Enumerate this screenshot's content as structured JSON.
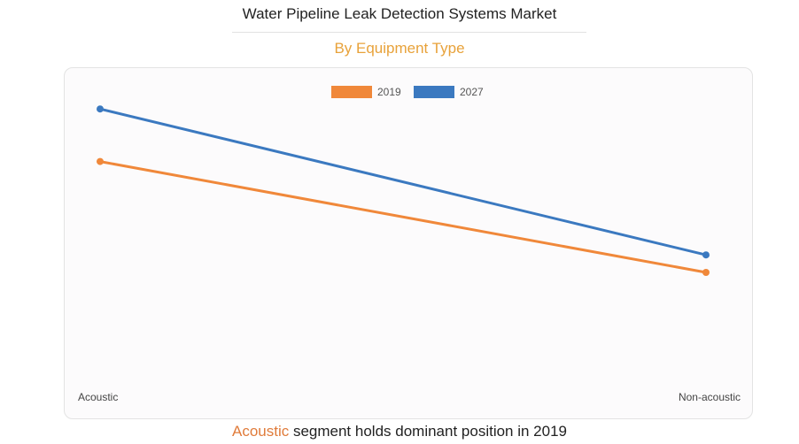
{
  "header": {
    "title": "Water Pipeline Leak Detection Systems Market",
    "subtitle": "By Equipment Type"
  },
  "footer": {
    "highlight": "Acoustic",
    "rest": " segment holds dominant position in 2019"
  },
  "colors": {
    "series_2019": "#f0883a",
    "series_2027": "#3b79c0",
    "subtitle": "#e8a23a",
    "footer_highlight": "#e07b3a"
  },
  "chart_data": {
    "type": "line",
    "title": "Water Pipeline Leak Detection Systems Market",
    "subtitle": "By Equipment Type",
    "categories": [
      "Acoustic",
      "Non-acoustic"
    ],
    "series": [
      {
        "name": "2019",
        "values": [
          68,
          30
        ]
      },
      {
        "name": "2027",
        "values": [
          86,
          36
        ]
      }
    ],
    "ylim": [
      0,
      100
    ],
    "xlabel": "",
    "ylabel": "",
    "grid": false,
    "legend": "top-center"
  }
}
